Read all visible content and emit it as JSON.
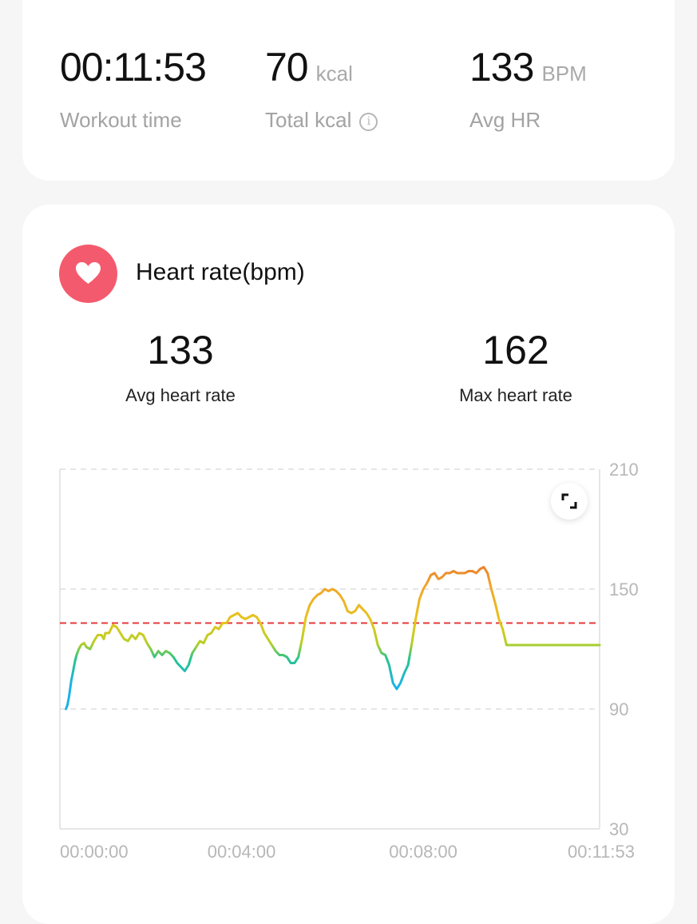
{
  "summary": {
    "workout_time": {
      "value": "00:11:53",
      "label": "Workout time"
    },
    "total_kcal": {
      "value": "70",
      "unit": "kcal",
      "label": "Total kcal"
    },
    "avg_hr": {
      "value": "133",
      "unit": "BPM",
      "label": "Avg HR"
    }
  },
  "heart_rate": {
    "title": "Heart rate(bpm)",
    "avg": {
      "value": "133",
      "label": "Avg heart rate"
    },
    "max": {
      "value": "162",
      "label": "Max heart rate"
    }
  },
  "colors": {
    "accent": "#f45a6d",
    "avg_line": "#e43a3a",
    "grid": "#dddddd",
    "axis_text": "#b7b7b7"
  },
  "icons": [
    "heart-icon",
    "info-icon",
    "expand-icon"
  ],
  "chart_data": {
    "type": "line",
    "title": "",
    "xlabel": "",
    "ylabel": "",
    "x_range_seconds": [
      0,
      713
    ],
    "ylim": [
      30,
      210
    ],
    "y_ticks": [
      210,
      150,
      90,
      30
    ],
    "x_tick_labels": [
      "00:00:00",
      "00:04:00",
      "00:08:00",
      "00:11:53"
    ],
    "x_tick_seconds": [
      0,
      240,
      480,
      713
    ],
    "reference_line": {
      "value": 133,
      "style": "dashed",
      "color": "#e43a3a"
    },
    "grid": "horizontal dashed",
    "series": [
      {
        "x": [
          8,
          10,
          12,
          15,
          18,
          20,
          22,
          25,
          28,
          32,
          35,
          40,
          45,
          50,
          55,
          58,
          60,
          65,
          70,
          75,
          80,
          83,
          85,
          90,
          95,
          100,
          105,
          110,
          115,
          120,
          125,
          130,
          135,
          140,
          145,
          150,
          155,
          160,
          165,
          170,
          175,
          180,
          185,
          190,
          195,
          200,
          205,
          210,
          215,
          220,
          225,
          230,
          235,
          240,
          245,
          250,
          255,
          260,
          265,
          270,
          275,
          280,
          285,
          290,
          295,
          300,
          305,
          310,
          315,
          320,
          325,
          330,
          335,
          340,
          345,
          350,
          355,
          360,
          365,
          370,
          375,
          380,
          385,
          390,
          395,
          400,
          405,
          410,
          415,
          420,
          425,
          430,
          435,
          440,
          445,
          450,
          455,
          460,
          465,
          470,
          475,
          480,
          485,
          490,
          495,
          500,
          505,
          510,
          515,
          520,
          525,
          530,
          535,
          540,
          545,
          550,
          555,
          560,
          565,
          570,
          575,
          580,
          585,
          590,
          595,
          600,
          605,
          610,
          615,
          620,
          625,
          630,
          635,
          640,
          645,
          650,
          655,
          660,
          665,
          670,
          675,
          680,
          685,
          690,
          695,
          700,
          705,
          710,
          713
        ],
        "y": [
          90,
          92,
          96,
          104,
          110,
          114,
          117,
          120,
          122,
          123,
          121,
          120,
          124,
          127,
          127,
          125,
          128,
          128,
          132,
          131,
          128,
          126,
          125,
          124,
          127,
          125,
          128,
          127,
          123,
          120,
          116,
          119,
          117,
          119,
          118,
          116,
          113,
          111,
          109,
          112,
          118,
          121,
          124,
          123,
          127,
          128,
          131,
          130,
          133,
          133,
          136,
          137,
          138,
          136,
          135,
          136,
          137,
          136,
          133,
          128,
          125,
          122,
          119,
          117,
          117,
          116,
          113,
          113,
          116,
          125,
          136,
          142,
          145,
          147,
          148,
          150,
          149,
          150,
          149,
          147,
          144,
          139,
          138,
          139,
          142,
          140,
          138,
          135,
          130,
          122,
          118,
          117,
          112,
          103,
          100,
          103,
          108,
          112,
          123,
          135,
          145,
          150,
          153,
          157,
          158,
          155,
          156,
          158,
          158,
          159,
          158,
          158,
          158,
          159,
          159,
          158,
          160,
          161,
          158,
          150,
          143,
          135,
          130,
          122,
          122,
          122,
          122,
          122,
          122,
          122,
          122,
          122,
          122,
          122,
          122,
          122,
          122,
          122,
          122,
          122,
          122,
          122,
          122,
          122,
          122,
          122,
          122,
          122,
          122
        ]
      }
    ]
  }
}
